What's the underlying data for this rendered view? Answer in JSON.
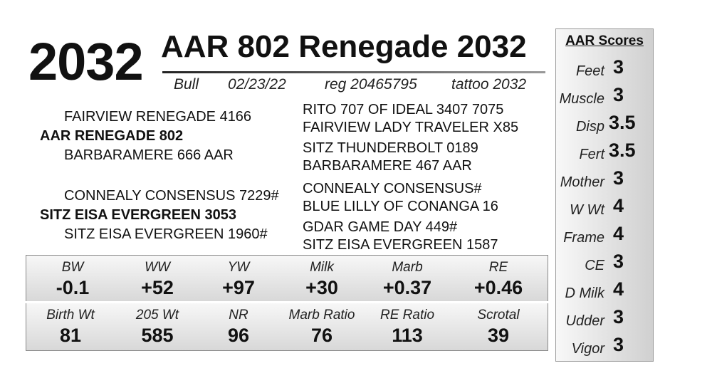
{
  "header": {
    "lot": "2032",
    "name": "AAR 802 Renegade 2032",
    "sex": "Bull",
    "dob": "02/23/22",
    "reg": "reg 20465795",
    "tattoo": "tattoo 2032"
  },
  "pedigree": {
    "sire": "AAR RENEGADE 802",
    "sire_sire": "FAIRVIEW RENEGADE 4166",
    "sire_dam": "BARBARAMERE 666 AAR",
    "sss": "RITO 707 OF IDEAL 3407 7075",
    "ssd": "FAIRVIEW LADY TRAVELER X85",
    "sds": "SITZ THUNDERBOLT 0189",
    "sdd": "BARBARAMERE 467 AAR",
    "dam": "SITZ EISA EVERGREEN 3053",
    "dam_sire": "CONNEALY CONSENSUS 7229#",
    "dam_dam": "SITZ EISA EVERGREEN 1960#",
    "dss": "CONNEALY CONSENSUS#",
    "dsd": "BLUE LILLY OF CONANGA 16",
    "dds": "GDAR GAME DAY 449#",
    "ddd": "SITZ EISA EVERGREEN 1587"
  },
  "epds": [
    {
      "label": "BW",
      "value": "-0.1"
    },
    {
      "label": "WW",
      "value": "+52"
    },
    {
      "label": "YW",
      "value": "+97"
    },
    {
      "label": "Milk",
      "value": "+30"
    },
    {
      "label": "Marb",
      "value": "+0.37"
    },
    {
      "label": "RE",
      "value": "+0.46"
    }
  ],
  "actuals": [
    {
      "label": "Birth Wt",
      "value": "81"
    },
    {
      "label": "205 Wt",
      "value": "585"
    },
    {
      "label": "NR",
      "value": "96"
    },
    {
      "label": "Marb Ratio",
      "value": "76"
    },
    {
      "label": "RE Ratio",
      "value": "113"
    },
    {
      "label": "Scrotal",
      "value": "39"
    }
  ],
  "scores": {
    "title": "AAR Scores",
    "items": [
      {
        "label": "Feet",
        "value": "3"
      },
      {
        "label": "Muscle",
        "value": "3"
      },
      {
        "label": "Disp",
        "value": "3.5"
      },
      {
        "label": "Fert",
        "value": "3.5"
      },
      {
        "label": "Mother",
        "value": "3"
      },
      {
        "label": "W Wt",
        "value": "4"
      },
      {
        "label": "Frame",
        "value": "4"
      },
      {
        "label": "CE",
        "value": "3"
      },
      {
        "label": "D Milk",
        "value": "4"
      },
      {
        "label": "Udder",
        "value": "3"
      },
      {
        "label": "Vigor",
        "value": "3"
      }
    ]
  }
}
